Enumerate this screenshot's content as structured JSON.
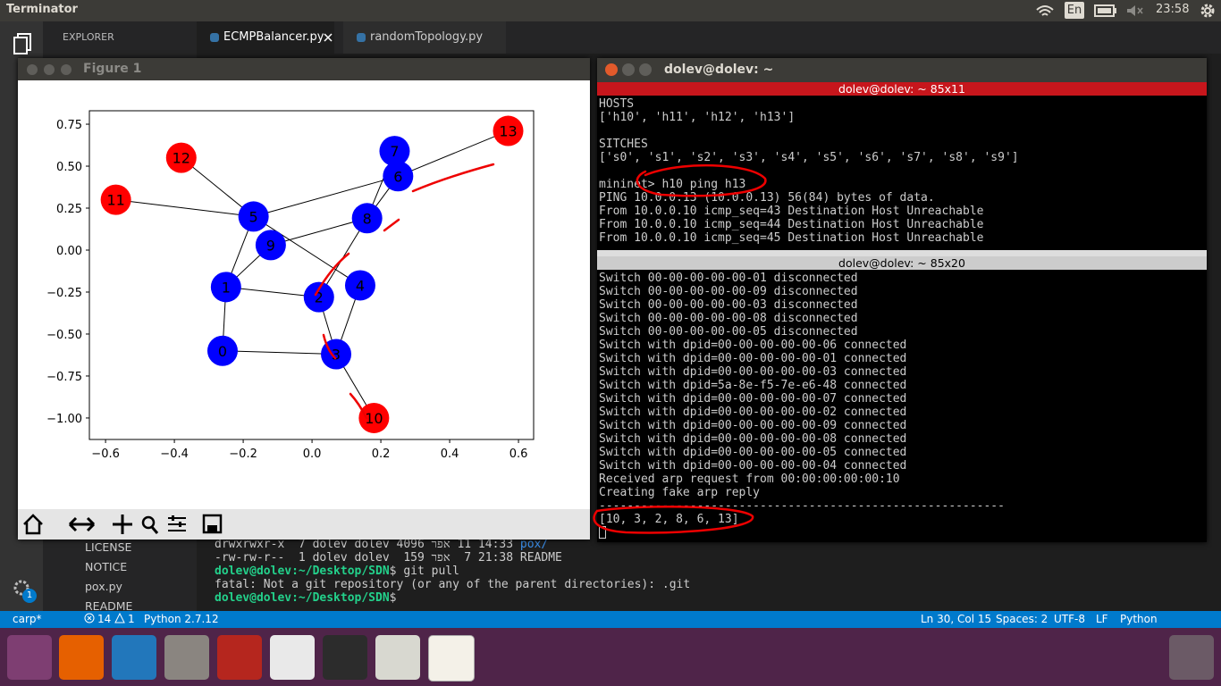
{
  "top_bar": {
    "app": "Terminator",
    "keyboard": "En",
    "time": "23:58"
  },
  "editor": {
    "explorer": "EXPLORER",
    "tabs": [
      "ECMPBalancer.py",
      "randomTopology.py"
    ],
    "files": [
      "LICENSE",
      "NOTICE",
      "pox.py",
      "README"
    ],
    "activity_badge": 1,
    "terminal": [
      {
        "text": "drwxrwxr-x  7 dolev dolev 4096 רפא 11 14:33 ",
        "dir": "pox/"
      },
      {
        "text": "-rw-rw-r--  1 dolev dolev  159 רפא  7 21:38 README"
      },
      {
        "prompt": "dolev@dolev:~/Desktop/SDN",
        "text": "$ git pull"
      },
      {
        "text": "fatal: Not a git repository (or any of the parent directories): .git"
      },
      {
        "prompt": "dolev@dolev:~/Desktop/SDN",
        "text": "$ "
      }
    ]
  },
  "status_bar": {
    "branch": "carp*",
    "errors": 14,
    "warnings": 1,
    "interpreter": "Python 2.7.12",
    "position": "Ln 30, Col 15",
    "spaces": "Spaces: 2",
    "encoding": "UTF-8",
    "eol": "LF",
    "language": "Python"
  },
  "figure": {
    "title": "Figure 1",
    "xlim": [
      -0.647,
      0.644
    ],
    "ylim": [
      -1.128,
      0.83
    ],
    "xticks": [
      {
        "value": -0.6,
        "label": "−0.6"
      },
      {
        "value": -0.4,
        "label": "−0.4"
      },
      {
        "value": -0.2,
        "label": "−0.2"
      },
      {
        "value": 0,
        "label": "0.0"
      },
      0.2,
      0.4,
      0.6
    ],
    "yticks": [
      0.75,
      {
        "value": 0.5,
        "label": "0.50"
      },
      0.25,
      {
        "value": 0,
        "label": "0.00"
      },
      {
        "value": -0.25,
        "label": "−0.25"
      },
      {
        "value": -0.5,
        "label": "−0.50"
      },
      {
        "value": -0.75,
        "label": "−0.75"
      },
      {
        "value": -1,
        "label": "−1.00"
      }
    ],
    "nodes": [
      {
        "label": "0",
        "x": -0.26,
        "y": -0.6,
        "color": "#0000ff"
      },
      {
        "label": "1",
        "x": -0.25,
        "y": -0.22,
        "color": "#0000ff"
      },
      {
        "label": "2",
        "x": 0.02,
        "y": -0.28,
        "color": "#0000ff"
      },
      {
        "label": "3",
        "x": 0.07,
        "y": -0.62,
        "color": "#0000ff"
      },
      {
        "label": "4",
        "x": 0.14,
        "y": -0.21,
        "color": "#0000ff"
      },
      {
        "label": "5",
        "x": -0.17,
        "y": 0.2,
        "color": "#0000ff"
      },
      {
        "label": "6",
        "x": 0.25,
        "y": 0.44,
        "color": "#0000ff"
      },
      {
        "label": "7",
        "x": 0.24,
        "y": 0.59,
        "color": "#0000ff"
      },
      {
        "label": "8",
        "x": 0.16,
        "y": 0.19,
        "color": "#0000ff"
      },
      {
        "label": "9",
        "x": -0.12,
        "y": 0.03,
        "color": "#0000ff"
      },
      {
        "label": "10",
        "x": 0.18,
        "y": -1.0,
        "color": "#ff0000"
      },
      {
        "label": "11",
        "x": -0.57,
        "y": 0.3,
        "color": "#ff0000"
      },
      {
        "label": "12",
        "x": -0.38,
        "y": 0.55,
        "color": "#ff0000"
      },
      {
        "label": "13",
        "x": 0.57,
        "y": 0.71,
        "color": "#ff0000"
      }
    ],
    "edges": [
      [
        "0",
        "1"
      ],
      [
        "0",
        "3"
      ],
      [
        "1",
        "5"
      ],
      [
        "1",
        "9"
      ],
      [
        "1",
        "2"
      ],
      [
        "2",
        "3"
      ],
      [
        "2",
        "8"
      ],
      [
        "3",
        "4"
      ],
      [
        "3",
        "10"
      ],
      [
        "5",
        "4"
      ],
      [
        "5",
        "11"
      ],
      [
        "5",
        "12"
      ],
      [
        "5",
        "6"
      ],
      [
        "9",
        "8"
      ],
      [
        "8",
        "6"
      ],
      [
        "8",
        "7"
      ],
      [
        "6",
        "7"
      ],
      [
        "6",
        "13"
      ]
    ]
  },
  "terminator": {
    "title": "dolev@dolev: ~",
    "top_pane": {
      "title": "dolev@dolev: ~ 85x11",
      "blocks": [
        [
          "HOSTS",
          "['h10', 'h11', 'h12', 'h13']"
        ],
        [
          "SITCHES",
          "['s0', 's1', 's2', 's3', 's4', 's5', 's6', 's7', 's8', 's9']"
        ],
        [
          "mininet> h10 ping h13",
          "PING 10.0.0.13 (10.0.0.13) 56(84) bytes of data.",
          "From 10.0.0.10 icmp_seq=43 Destination Host Unreachable",
          "From 10.0.0.10 icmp_seq=44 Destination Host Unreachable",
          "From 10.0.0.10 icmp_seq=45 Destination Host Unreachable"
        ]
      ]
    },
    "bottom_pane": {
      "title": "dolev@dolev: ~ 85x20",
      "lines": [
        "Switch 00-00-00-00-00-01 disconnected",
        "Switch 00-00-00-00-00-09 disconnected",
        "Switch 00-00-00-00-00-03 disconnected",
        "Switch 00-00-00-00-00-08 disconnected",
        "Switch 00-00-00-00-00-05 disconnected",
        "Switch with dpid=00-00-00-00-00-06 connected",
        "Switch with dpid=00-00-00-00-00-01 connected",
        "Switch with dpid=00-00-00-00-00-03 connected",
        "Switch with dpid=5a-8e-f5-7e-e6-48 connected",
        "Switch with dpid=00-00-00-00-00-07 connected",
        "Switch with dpid=00-00-00-00-00-02 connected",
        "Switch with dpid=00-00-00-00-00-09 connected",
        "Switch with dpid=00-00-00-00-00-08 connected",
        "Switch with dpid=00-00-00-00-00-05 connected",
        "Switch with dpid=00-00-00-00-00-04 connected",
        "Received arp request from 00:00:00:00:00:10",
        "Creating fake arp reply",
        "----------------------------------------------------------",
        "[10, 3, 2, 8, 6, 13]"
      ]
    }
  }
}
